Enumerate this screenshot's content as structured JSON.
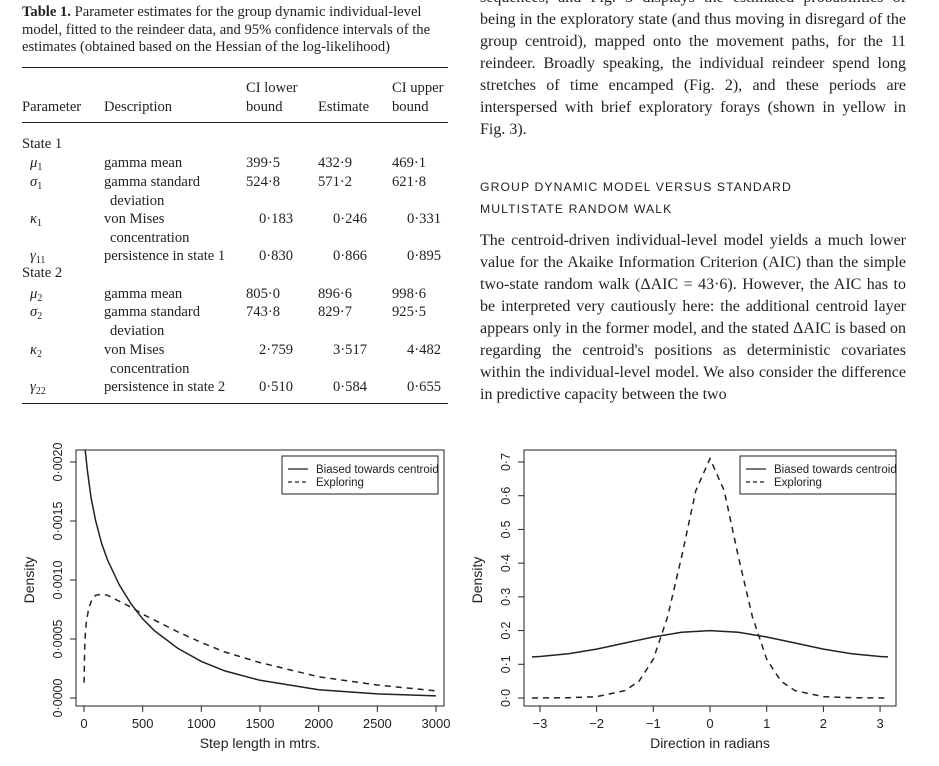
{
  "table": {
    "label": "Table 1.",
    "caption": "Parameter estimates for the group dynamic individual-level model, fitted to the reindeer data, and 95% confidence intervals of the estimates (obtained based on the Hessian of the log-likelihood)",
    "headers": {
      "parameter": "Parameter",
      "description": "Description",
      "ci_lower_1": "CI lower",
      "ci_lower_2": "bound",
      "estimate": "Estimate",
      "ci_upper_1": "CI upper",
      "ci_upper_2": "bound"
    },
    "state1_label": "State 1",
    "state2_label": "State 2",
    "rows": [
      {
        "sym": "μ",
        "sub": "1",
        "desc": "gamma mean",
        "desc2": "",
        "lower": "399·5",
        "est": "432·9",
        "upper": "469·1"
      },
      {
        "sym": "σ",
        "sub": "1",
        "desc": "gamma standard",
        "desc2": "deviation",
        "lower": "524·8",
        "est": "571·2",
        "upper": "621·8"
      },
      {
        "sym": "κ",
        "sub": "1",
        "desc": "von Mises",
        "desc2": "concentration",
        "lower": "0·183",
        "est": "0·246",
        "upper": "0·331"
      },
      {
        "sym": "γ",
        "sub": "11",
        "desc": "persistence in state 1",
        "desc2": "",
        "lower": "0·830",
        "est": "0·866",
        "upper": "0·895"
      },
      {
        "sym": "μ",
        "sub": "2",
        "desc": "gamma mean",
        "desc2": "",
        "lower": "805·0",
        "est": "896·6",
        "upper": "998·6"
      },
      {
        "sym": "σ",
        "sub": "2",
        "desc": "gamma standard",
        "desc2": "deviation",
        "lower": "743·8",
        "est": "829·7",
        "upper": "925·5"
      },
      {
        "sym": "κ",
        "sub": "2",
        "desc": "von Mises",
        "desc2": "concentration",
        "lower": "2·759",
        "est": "3·517",
        "upper": "4·482"
      },
      {
        "sym": "γ",
        "sub": "22",
        "desc": "persistence in state 2",
        "desc2": "",
        "lower": "0·510",
        "est": "0·584",
        "upper": "0·655"
      }
    ]
  },
  "right_text": {
    "top_line_partial": "sequences, and Fig. 3 displays the estimated probabilities of",
    "top_paragraph": "being in the exploratory state (and thus moving in disregard of the group centroid), mapped onto the movement paths, for the 11 reindeer. Broadly speaking, the individual reindeer spend long stretches of time encamped (Fig. 2), and these periods are interspersed with brief exploratory forays (shown in yellow in Fig. 3).",
    "heading_line1": "GROUP DYNAMIC MODEL VERSUS STANDARD",
    "heading_line2": "MULTISTATE RANDOM WALK",
    "bottom_paragraph": "The centroid-driven individual-level model yields a much lower value for the Akaike Information Criterion (AIC) than the simple two-state random walk (ΔAIC = 43·6). However, the AIC has to be interpreted very cautiously here: the additional centroid layer appears only in the former model, and the stated ΔAIC is based on regarding the centroid's positions as deterministic covariates within the individual-level model. We also consider the difference in predictive capacity between the two"
  },
  "chart_data": [
    {
      "type": "line",
      "xlabel": "Step length in mtrs.",
      "ylabel": "Density",
      "xlim": [
        0,
        3000
      ],
      "ylim": [
        0,
        0.002
      ],
      "xticks": [
        "0",
        "500",
        "1000",
        "1500",
        "2000",
        "2500",
        "3000"
      ],
      "yticks": [
        "0·0000",
        "0·0005",
        "0·0010",
        "0·0015",
        "0·0020"
      ],
      "legend_position": "top-right",
      "series": [
        {
          "name": "Biased towards centroid",
          "style": "solid",
          "x": [
            10,
            30,
            60,
            100,
            150,
            200,
            300,
            400,
            500,
            600,
            800,
            1000,
            1200,
            1500,
            2000,
            2500,
            3000
          ],
          "y": [
            0.0021,
            0.00192,
            0.0017,
            0.0015,
            0.00131,
            0.00117,
            0.00096,
            0.0008,
            0.00067,
            0.00057,
            0.00042,
            0.00031,
            0.00023,
            0.00015,
            7e-05,
            3.5e-05,
            1.8e-05
          ]
        },
        {
          "name": "Exploring",
          "style": "dashed",
          "x": [
            1,
            5,
            10,
            20,
            40,
            70,
            100,
            150,
            200,
            300,
            400,
            500,
            600,
            800,
            1000,
            1200,
            1500,
            2000,
            2500,
            3000
          ],
          "y": [
            0.00013,
            0.0004,
            0.00052,
            0.00064,
            0.00076,
            0.00084,
            0.00087,
            0.00088,
            0.00087,
            0.00082,
            0.00077,
            0.00071,
            0.00066,
            0.00056,
            0.00047,
            0.00039,
            0.0003,
            0.00018,
            0.00011,
            6e-05
          ]
        }
      ]
    },
    {
      "type": "line",
      "xlabel": "Direction in radians",
      "ylabel": "Density",
      "xlim": [
        -3.14,
        3.14
      ],
      "ylim": [
        0,
        0.7
      ],
      "xticks": [
        "−3",
        "−2",
        "−1",
        "0",
        "1",
        "2",
        "3"
      ],
      "yticks": [
        "0·0",
        "0·1",
        "0·2",
        "0·3",
        "0·4",
        "0·5",
        "0·6",
        "0·7"
      ],
      "legend_position": "top-right",
      "series": [
        {
          "name": "Biased towards centroid",
          "style": "solid",
          "x": [
            -3.14,
            -3,
            -2.5,
            -2,
            -1.5,
            -1,
            -0.5,
            0,
            0.5,
            1,
            1.5,
            2,
            2.5,
            3,
            3.14
          ],
          "y": [
            0.122,
            0.123,
            0.131,
            0.145,
            0.163,
            0.181,
            0.195,
            0.2,
            0.195,
            0.181,
            0.163,
            0.145,
            0.131,
            0.123,
            0.122
          ]
        },
        {
          "name": "Exploring",
          "style": "dashed",
          "x": [
            -3.14,
            -2.5,
            -2,
            -1.5,
            -1.25,
            -1,
            -0.75,
            -0.5,
            -0.25,
            0,
            0.25,
            0.5,
            0.75,
            1,
            1.25,
            1.5,
            2,
            2.5,
            3.14
          ],
          "y": [
            0.0,
            0.001,
            0.004,
            0.022,
            0.05,
            0.115,
            0.24,
            0.42,
            0.615,
            0.71,
            0.615,
            0.42,
            0.24,
            0.115,
            0.05,
            0.022,
            0.004,
            0.001,
            0.0
          ]
        }
      ]
    }
  ]
}
